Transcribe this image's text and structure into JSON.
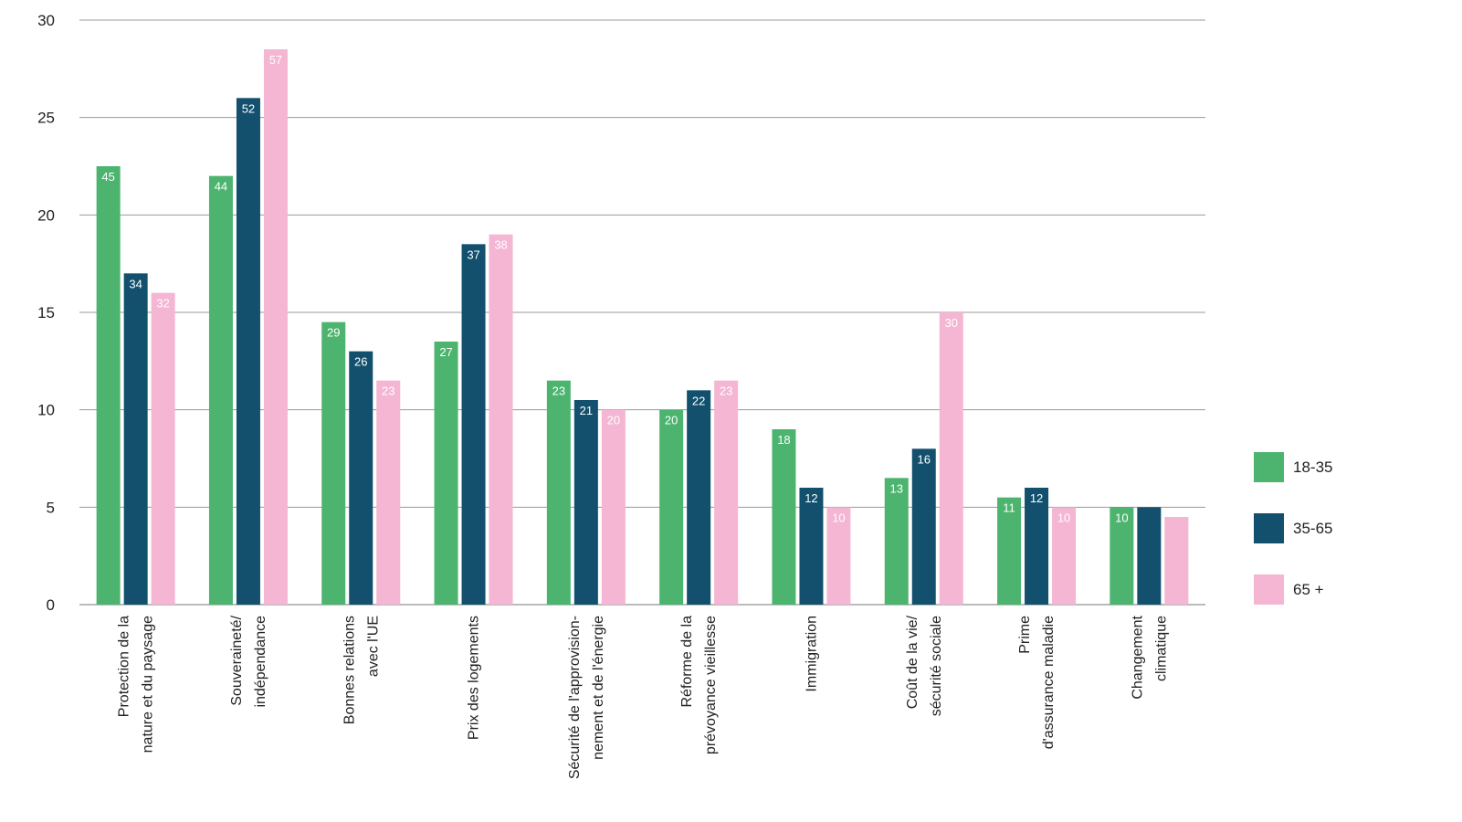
{
  "chart_data": {
    "type": "bar",
    "title": "",
    "xlabel": "",
    "ylabel": "",
    "ylim": [
      0,
      30
    ],
    "yticks": [
      0,
      5,
      10,
      15,
      20,
      25,
      30
    ],
    "grid": true,
    "legend_position": "right",
    "categories": [
      [
        "Protection de la",
        "nature et du paysage"
      ],
      [
        "Souveraineté/",
        "indépendance"
      ],
      [
        "Bonnes relations",
        "avec l'UE"
      ],
      [
        "Prix des logements"
      ],
      [
        "Sécurité de l'approvision-",
        "nement et de l'énergie"
      ],
      [
        "Réforme de la",
        "prévoyance vieillesse"
      ],
      [
        "Immigration"
      ],
      [
        "Coût de la vie/",
        "sécurité sociale"
      ],
      [
        "Prime",
        "d'assurance maladie"
      ],
      [
        "Changement",
        "climatique"
      ]
    ],
    "series": [
      {
        "name": "18-35",
        "color": "#4cb46e",
        "values": [
          22.5,
          22,
          14.5,
          13.5,
          11.5,
          10,
          9,
          6.5,
          5.5,
          5
        ],
        "labels": [
          "45",
          "44",
          "29",
          "27",
          "23",
          "20",
          "18",
          "13",
          "11",
          "10"
        ]
      },
      {
        "name": "35-65",
        "color": "#12506e",
        "values": [
          17,
          26,
          13,
          18.5,
          10.5,
          11,
          6,
          8,
          6,
          5
        ],
        "labels": [
          "34",
          "52",
          "26",
          "37",
          "21",
          "22",
          "12",
          "16",
          "12",
          ""
        ]
      },
      {
        "name": "65 +",
        "color": "#f4b6d2",
        "values": [
          16,
          28.5,
          11.5,
          19,
          10,
          11.5,
          5,
          15,
          5,
          4.5
        ],
        "labels": [
          "32",
          "57",
          "23",
          "38",
          "20",
          "23",
          "10",
          "30",
          "10",
          ""
        ]
      }
    ]
  }
}
